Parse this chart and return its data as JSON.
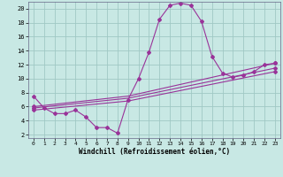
{
  "xlabel": "Windchill (Refroidissement éolien,°C)",
  "background_color": "#c8e8e4",
  "grid_color": "#a0c8c4",
  "line_color": "#993399",
  "xlim": [
    -0.5,
    23.5
  ],
  "ylim": [
    1.5,
    21.0
  ],
  "yticks": [
    2,
    4,
    6,
    8,
    10,
    12,
    14,
    16,
    18,
    20
  ],
  "xticks": [
    0,
    1,
    2,
    3,
    4,
    5,
    6,
    7,
    8,
    9,
    10,
    11,
    12,
    13,
    14,
    15,
    16,
    17,
    18,
    19,
    20,
    21,
    22,
    23
  ],
  "curve_x": [
    0,
    1,
    2,
    3,
    4,
    5,
    6,
    7,
    8,
    9,
    10,
    11,
    12,
    13,
    14,
    15,
    16,
    17,
    18,
    19,
    20,
    21,
    22,
    23
  ],
  "curve_y": [
    7.5,
    5.8,
    5.0,
    5.0,
    5.5,
    4.5,
    3.0,
    3.0,
    2.2,
    7.0,
    10.0,
    13.8,
    18.5,
    20.5,
    20.8,
    20.5,
    18.2,
    13.2,
    10.8,
    10.2,
    10.5,
    11.0,
    12.0,
    12.2
  ],
  "line1_x": [
    0,
    9,
    23
  ],
  "line1_y": [
    6.0,
    7.5,
    12.2
  ],
  "line2_x": [
    0,
    9,
    23
  ],
  "line2_y": [
    5.8,
    7.2,
    11.5
  ],
  "line3_x": [
    0,
    9,
    23
  ],
  "line3_y": [
    5.5,
    6.8,
    11.0
  ]
}
